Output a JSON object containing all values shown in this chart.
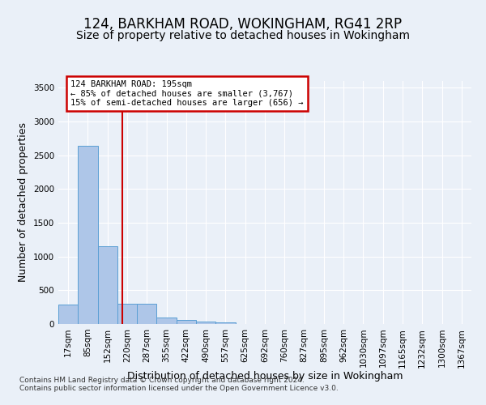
{
  "title1": "124, BARKHAM ROAD, WOKINGHAM, RG41 2RP",
  "title2": "Size of property relative to detached houses in Wokingham",
  "xlabel": "Distribution of detached houses by size in Wokingham",
  "ylabel": "Number of detached properties",
  "footnote1": "Contains HM Land Registry data © Crown copyright and database right 2024.",
  "footnote2": "Contains public sector information licensed under the Open Government Licence v3.0.",
  "bin_labels": [
    "17sqm",
    "85sqm",
    "152sqm",
    "220sqm",
    "287sqm",
    "355sqm",
    "422sqm",
    "490sqm",
    "557sqm",
    "625sqm",
    "692sqm",
    "760sqm",
    "827sqm",
    "895sqm",
    "962sqm",
    "1030sqm",
    "1097sqm",
    "1165sqm",
    "1232sqm",
    "1300sqm"
  ],
  "bar_values": [
    290,
    2640,
    1150,
    300,
    300,
    95,
    65,
    40,
    30,
    0,
    0,
    0,
    0,
    0,
    0,
    0,
    0,
    0,
    0,
    0
  ],
  "extra_label": "1367sqm",
  "bar_color": "#aec6e8",
  "bar_edgecolor": "#5a9fd4",
  "vline_x": 2.75,
  "vline_color": "#cc0000",
  "annotation_text": "124 BARKHAM ROAD: 195sqm\n← 85% of detached houses are smaller (3,767)\n15% of semi-detached houses are larger (656) →",
  "annotation_box_color": "#ffffff",
  "annotation_border_color": "#cc0000",
  "ylim": [
    0,
    3600
  ],
  "yticks": [
    0,
    500,
    1000,
    1500,
    2000,
    2500,
    3000,
    3500
  ],
  "bg_color": "#eaf0f8",
  "plot_bg_color": "#eaf0f8",
  "grid_color": "#ffffff",
  "title_fontsize": 12,
  "subtitle_fontsize": 10,
  "tick_fontsize": 7.5,
  "ylabel_fontsize": 9,
  "xlabel_fontsize": 9
}
